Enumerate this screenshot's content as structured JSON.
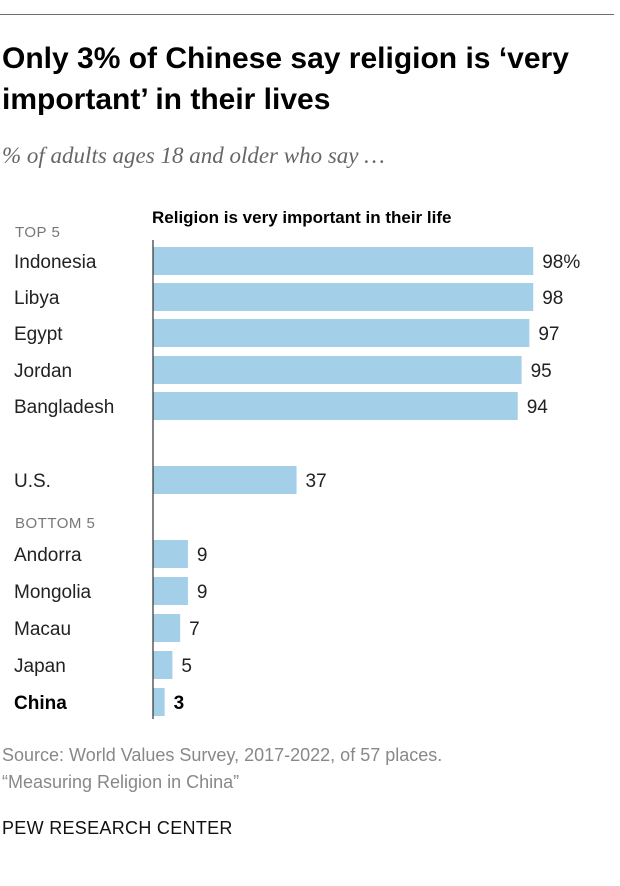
{
  "header": {
    "title": "Only 3% of Chinese say religion is ‘very important’ in their lives",
    "subtitle": "% of adults ages 18 and older who say …"
  },
  "chart_data": {
    "type": "bar",
    "orientation": "horizontal",
    "title": "Religion is very important in their life",
    "groups": [
      {
        "label": "TOP 5",
        "items": [
          {
            "category": "Indonesia",
            "value": 98,
            "value_label": "98%"
          },
          {
            "category": "Libya",
            "value": 98,
            "value_label": "98"
          },
          {
            "category": "Egypt",
            "value": 97,
            "value_label": "97"
          },
          {
            "category": "Jordan",
            "value": 95,
            "value_label": "95"
          },
          {
            "category": "Bangladesh",
            "value": 94,
            "value_label": "94"
          }
        ]
      },
      {
        "label": "",
        "items": [
          {
            "category": "U.S.",
            "value": 37,
            "value_label": "37"
          }
        ]
      },
      {
        "label": "BOTTOM 5",
        "items": [
          {
            "category": "Andorra",
            "value": 9,
            "value_label": "9"
          },
          {
            "category": "Mongolia",
            "value": 9,
            "value_label": "9"
          },
          {
            "category": "Macau",
            "value": 7,
            "value_label": "7"
          },
          {
            "category": "Japan",
            "value": 5,
            "value_label": "5"
          },
          {
            "category": "China",
            "value": 3,
            "value_label": "3",
            "emphasis": true
          }
        ]
      }
    ],
    "xlim": [
      0,
      100
    ],
    "bar_color": "#a3cfe8",
    "axis_color": "#333333"
  },
  "footer": {
    "source_line1": "Source: World Values Survey, 2017-2022, of 57 places.",
    "source_line2": "“Measuring Religion in China”",
    "brand": "PEW RESEARCH CENTER"
  }
}
